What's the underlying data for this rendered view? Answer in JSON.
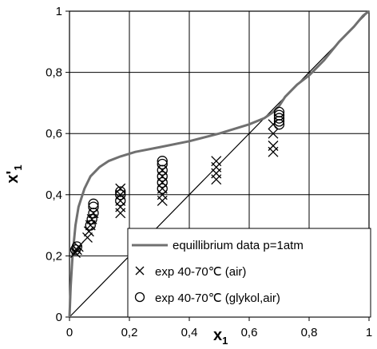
{
  "chart_data": {
    "type": "scatter",
    "xlim": [
      0,
      1
    ],
    "ylim": [
      0,
      1
    ],
    "x_ticks": [
      "0",
      "0,2",
      "0,4",
      "0,6",
      "0,8",
      "1"
    ],
    "y_ticks": [
      "0",
      "0,2",
      "0,4",
      "0,6",
      "0,8",
      "1"
    ],
    "xlabel": {
      "main": "x",
      "sub": "1"
    },
    "ylabel": {
      "main": "x'",
      "sub": "1"
    },
    "grid": true,
    "legend_position": "bottom-right",
    "diagonal_line": [
      [
        0,
        0
      ],
      [
        1,
        1
      ]
    ],
    "series": [
      {
        "name": "equillibrium data p=1atm",
        "kind": "line",
        "color": "#707070",
        "x": [
          0.0,
          0.004,
          0.01,
          0.02,
          0.03,
          0.05,
          0.07,
          0.1,
          0.13,
          0.17,
          0.22,
          0.3,
          0.4,
          0.5,
          0.6,
          0.65,
          0.68,
          0.7,
          0.72,
          0.76,
          0.8,
          0.85,
          0.9,
          0.95,
          0.98,
          1.0
        ],
        "y": [
          0.0,
          0.1,
          0.2,
          0.3,
          0.36,
          0.42,
          0.46,
          0.49,
          0.51,
          0.525,
          0.54,
          0.555,
          0.575,
          0.6,
          0.63,
          0.65,
          0.67,
          0.69,
          0.72,
          0.76,
          0.79,
          0.84,
          0.9,
          0.95,
          0.985,
          1.0
        ]
      },
      {
        "name": "exp 40-70℃ (air)",
        "kind": "marker-x",
        "color": "#000000",
        "x": [
          0.02,
          0.025,
          0.03,
          0.06,
          0.065,
          0.07,
          0.075,
          0.08,
          0.17,
          0.17,
          0.17,
          0.17,
          0.17,
          0.31,
          0.31,
          0.31,
          0.31,
          0.31,
          0.31,
          0.49,
          0.49,
          0.49,
          0.49,
          0.68,
          0.68,
          0.68,
          0.68
        ],
        "y": [
          0.21,
          0.22,
          0.23,
          0.26,
          0.28,
          0.3,
          0.32,
          0.34,
          0.34,
          0.36,
          0.38,
          0.4,
          0.42,
          0.38,
          0.4,
          0.42,
          0.44,
          0.46,
          0.48,
          0.45,
          0.47,
          0.49,
          0.51,
          0.54,
          0.56,
          0.6,
          0.63
        ]
      },
      {
        "name": "exp 40-70℃ (glykol,air)",
        "kind": "marker-o",
        "color": "#000000",
        "x": [
          0.02,
          0.025,
          0.07,
          0.075,
          0.08,
          0.08,
          0.08,
          0.17,
          0.17,
          0.17,
          0.31,
          0.31,
          0.31,
          0.31,
          0.31,
          0.31,
          0.7,
          0.7,
          0.7,
          0.7,
          0.7
        ],
        "y": [
          0.22,
          0.23,
          0.3,
          0.32,
          0.34,
          0.36,
          0.37,
          0.38,
          0.4,
          0.41,
          0.42,
          0.44,
          0.46,
          0.48,
          0.5,
          0.51,
          0.63,
          0.64,
          0.65,
          0.66,
          0.67
        ]
      }
    ]
  }
}
